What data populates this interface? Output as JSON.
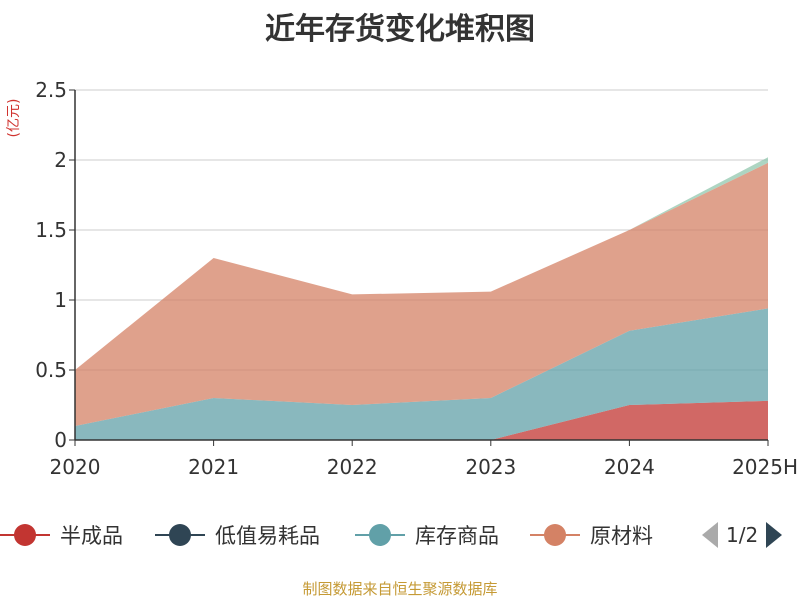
{
  "chart_data": {
    "type": "area",
    "stacked": true,
    "title": "近年存货变化堆积图",
    "ylabel": "(亿元)",
    "xlabel": "",
    "categories": [
      "2020",
      "2021",
      "2022",
      "2023",
      "2024",
      "2025H"
    ],
    "ylim": [
      0,
      2.5
    ],
    "yticks": [
      "0",
      "0.5",
      "1",
      "1.5",
      "2",
      "2.5"
    ],
    "grid": true,
    "legend_position": "bottom",
    "series": [
      {
        "name": "半成品",
        "color": "#c23531",
        "values": [
          0,
          0,
          0,
          0,
          0.25,
          0.28
        ]
      },
      {
        "name": "低值易耗品",
        "color": "#2f4554",
        "values": [
          0,
          0,
          0,
          0,
          0,
          0
        ]
      },
      {
        "name": "库存商品",
        "color": "#61a0a8",
        "values": [
          0.1,
          0.3,
          0.25,
          0.3,
          0.53,
          0.66
        ]
      },
      {
        "name": "原材料",
        "color": "#d48265",
        "values": [
          0.4,
          1.0,
          0.79,
          0.76,
          0.72,
          1.04
        ]
      },
      {
        "name": "",
        "color": "#91c7ae",
        "values": [
          0,
          0,
          0,
          0,
          0,
          0.04
        ]
      }
    ]
  },
  "legend": {
    "pager_text": "1/2",
    "prev_icon": "triangle-left-icon",
    "next_icon": "triangle-right-icon"
  },
  "footer": {
    "source": "制图数据来自恒生聚源数据库"
  }
}
